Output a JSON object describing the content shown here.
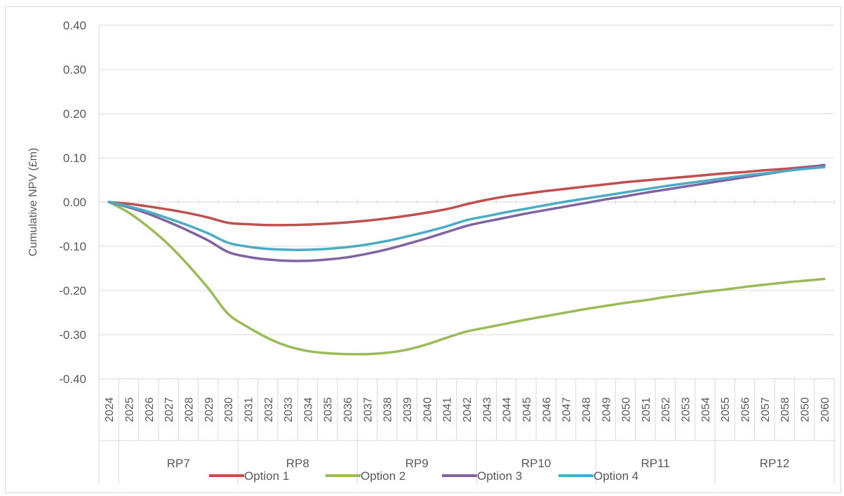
{
  "chart_data": {
    "type": "line",
    "title": "",
    "ylabel": "Cumulative NPV (£m)",
    "xlabel": "",
    "ylim": [
      -0.4,
      0.4
    ],
    "y_ticks": [
      "0.40",
      "0.30",
      "0.20",
      "0.10",
      "0.00",
      "-0.10",
      "-0.20",
      "-0.30",
      "-0.40"
    ],
    "y_tick_values": [
      0.4,
      0.3,
      0.2,
      0.1,
      0.0,
      -0.1,
      -0.2,
      -0.3,
      -0.4
    ],
    "x": [
      "2024",
      "2025",
      "2026",
      "2027",
      "2028",
      "2029",
      "2030",
      "2031",
      "2032",
      "2033",
      "2034",
      "2035",
      "2036",
      "2037",
      "2038",
      "2039",
      "2040",
      "2041",
      "2042",
      "2043",
      "2044",
      "2045",
      "2046",
      "2047",
      "2048",
      "2049",
      "2050",
      "2051",
      "2052",
      "2053",
      "2054",
      "2055",
      "2056",
      "2057",
      "2058",
      "2050",
      "2060"
    ],
    "groups": [
      {
        "label": "RP7",
        "start": 1,
        "end": 6
      },
      {
        "label": "RP8",
        "start": 7,
        "end": 12
      },
      {
        "label": "RP9",
        "start": 13,
        "end": 18
      },
      {
        "label": "RP10",
        "start": 19,
        "end": 24
      },
      {
        "label": "RP11",
        "start": 25,
        "end": 30
      },
      {
        "label": "RP12",
        "start": 31,
        "end": 36
      }
    ],
    "grid": true,
    "legend_position": "bottom",
    "series": [
      {
        "name": "Option 1",
        "color": "#c0504d",
        "values": [
          0.0,
          -0.004,
          -0.01,
          -0.017,
          -0.025,
          -0.035,
          -0.047,
          -0.05,
          -0.052,
          -0.052,
          -0.051,
          -0.049,
          -0.046,
          -0.042,
          -0.037,
          -0.031,
          -0.024,
          -0.016,
          -0.005,
          0.005,
          0.013,
          0.019,
          0.025,
          0.03,
          0.035,
          0.04,
          0.045,
          0.049,
          0.053,
          0.057,
          0.061,
          0.065,
          0.068,
          0.072,
          0.075,
          0.079,
          0.083
        ]
      },
      {
        "name": "Option 2",
        "color": "#9bbb59",
        "values": [
          0.0,
          -0.024,
          -0.057,
          -0.096,
          -0.143,
          -0.195,
          -0.253,
          -0.283,
          -0.308,
          -0.326,
          -0.337,
          -0.342,
          -0.344,
          -0.344,
          -0.341,
          -0.334,
          -0.322,
          -0.307,
          -0.293,
          -0.284,
          -0.275,
          -0.266,
          -0.258,
          -0.25,
          -0.242,
          -0.235,
          -0.228,
          -0.222,
          -0.215,
          -0.209,
          -0.203,
          -0.198,
          -0.192,
          -0.187,
          -0.182,
          -0.178,
          -0.174
        ]
      },
      {
        "name": "Option 3",
        "color": "#8064a2",
        "values": [
          0.0,
          -0.012,
          -0.027,
          -0.045,
          -0.065,
          -0.087,
          -0.113,
          -0.124,
          -0.13,
          -0.133,
          -0.133,
          -0.13,
          -0.125,
          -0.117,
          -0.107,
          -0.095,
          -0.082,
          -0.068,
          -0.054,
          -0.044,
          -0.035,
          -0.026,
          -0.018,
          -0.01,
          -0.002,
          0.006,
          0.013,
          0.021,
          0.028,
          0.035,
          0.042,
          0.049,
          0.056,
          0.063,
          0.07,
          0.077,
          0.084
        ]
      },
      {
        "name": "Option 4",
        "color": "#4bacc6",
        "values": [
          0.0,
          -0.01,
          -0.022,
          -0.037,
          -0.053,
          -0.071,
          -0.092,
          -0.101,
          -0.106,
          -0.108,
          -0.108,
          -0.106,
          -0.102,
          -0.096,
          -0.088,
          -0.078,
          -0.067,
          -0.055,
          -0.041,
          -0.032,
          -0.023,
          -0.015,
          -0.007,
          0.001,
          0.008,
          0.015,
          0.022,
          0.029,
          0.036,
          0.042,
          0.048,
          0.054,
          0.06,
          0.065,
          0.07,
          0.075,
          0.079
        ]
      }
    ]
  }
}
